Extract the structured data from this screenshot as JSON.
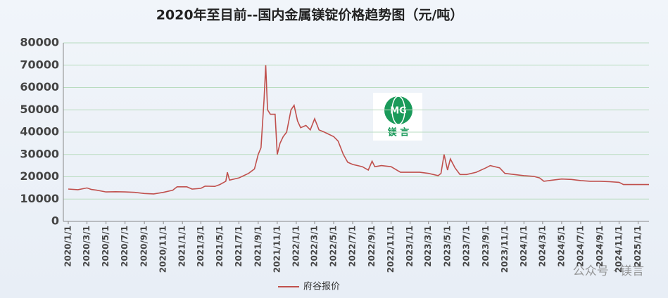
{
  "chart_data": {
    "type": "line",
    "title": "2020年至目前--国内金属镁锭价格趋势图（元/吨）",
    "series": [
      {
        "name": "府谷报价",
        "color": "#c0504d",
        "x": [
          "2020/1/1",
          "2020/2/1",
          "2020/3/1",
          "2020/3/15",
          "2020/4/1",
          "2020/5/1",
          "2020/6/1",
          "2020/7/1",
          "2020/8/1",
          "2020/9/1",
          "2020/10/1",
          "2020/11/1",
          "2020/12/1",
          "2020/12/15",
          "2021/1/15",
          "2021/2/1",
          "2021/3/1",
          "2021/3/15",
          "2021/4/15",
          "2021/5/1",
          "2021/5/20",
          "2021/5/25",
          "2021/6/1",
          "2021/7/1",
          "2021/8/1",
          "2021/8/20",
          "2021/9/1",
          "2021/9/10",
          "2021/9/20",
          "2021/9/25",
          "2021/10/1",
          "2021/10/10",
          "2021/10/25",
          "2021/11/1",
          "2021/11/10",
          "2021/11/20",
          "2021/12/1",
          "2021/12/15",
          "2021/12/25",
          "2022/1/5",
          "2022/1/15",
          "2022/2/1",
          "2022/2/15",
          "2022/3/1",
          "2022/3/15",
          "2022/4/1",
          "2022/5/1",
          "2022/5/15",
          "2022/6/1",
          "2022/6/15",
          "2022/7/1",
          "2022/8/1",
          "2022/8/20",
          "2022/9/1",
          "2022/9/10",
          "2022/10/1",
          "2022/11/1",
          "2022/12/1",
          "2023/1/1",
          "2023/2/1",
          "2023/3/1",
          "2023/4/1",
          "2023/4/10",
          "2023/4/20",
          "2023/5/1",
          "2023/5/10",
          "2023/5/25",
          "2023/6/10",
          "2023/7/1",
          "2023/8/1",
          "2023/9/1",
          "2023/9/15",
          "2023/10/15",
          "2023/11/1",
          "2023/12/1",
          "2024/1/1",
          "2024/2/1",
          "2024/2/20",
          "2024/3/5",
          "2024/4/1",
          "2024/5/1",
          "2024/6/1",
          "2024/7/1",
          "2024/8/1",
          "2024/9/1",
          "2024/10/1",
          "2024/11/1",
          "2024/11/15",
          "2025/1/1",
          "2025/2/5"
        ],
        "values": [
          14500,
          14200,
          15000,
          14300,
          14000,
          13200,
          13300,
          13200,
          13000,
          12500,
          12300,
          13000,
          14000,
          15500,
          15500,
          14500,
          14800,
          15800,
          15700,
          16500,
          18000,
          22000,
          18500,
          19500,
          21500,
          23500,
          30000,
          33000,
          55000,
          70000,
          50000,
          48000,
          48000,
          30000,
          35000,
          38000,
          40000,
          50000,
          52000,
          45000,
          42000,
          43000,
          41000,
          46000,
          41000,
          40000,
          38000,
          36000,
          30000,
          26500,
          25500,
          24500,
          23000,
          27000,
          24500,
          25000,
          24500,
          22000,
          22000,
          22000,
          21500,
          20500,
          21500,
          30000,
          23000,
          28000,
          24000,
          21000,
          21000,
          22000,
          24000,
          25000,
          24000,
          21500,
          21000,
          20500,
          20200,
          19500,
          18000,
          18500,
          19000,
          18800,
          18300,
          18000,
          18000,
          17800,
          17500,
          16500,
          16500,
          16500
        ]
      }
    ],
    "xlim": [
      "2020/1/1",
      "2025/2/5"
    ],
    "xticks": [
      "2020/1/1",
      "2020/3/1",
      "2020/5/1",
      "2020/7/1",
      "2020/9/1",
      "2020/11/1",
      "2021/1/1",
      "2021/3/1",
      "2021/5/1",
      "2021/7/1",
      "2021/9/1",
      "2021/11/1",
      "2022/1/1",
      "2022/3/1",
      "2022/5/1",
      "2022/7/1",
      "2022/9/1",
      "2022/11/1",
      "2023/1/1",
      "2023/3/1",
      "2023/5/1",
      "2023/7/1",
      "2023/9/1",
      "2023/11/1",
      "2024/1/1",
      "2024/3/1",
      "2024/5/1",
      "2024/7/1",
      "2024/9/1",
      "2024/11/1",
      "2025/1/1"
    ],
    "ylim": [
      0,
      80000
    ],
    "yticks": [
      0,
      10000,
      20000,
      30000,
      40000,
      50000,
      60000,
      70000,
      80000
    ],
    "grid": true,
    "legend": "bottom",
    "annotations": [
      "MG",
      "镁  言",
      "公众号 · 镁言"
    ]
  }
}
